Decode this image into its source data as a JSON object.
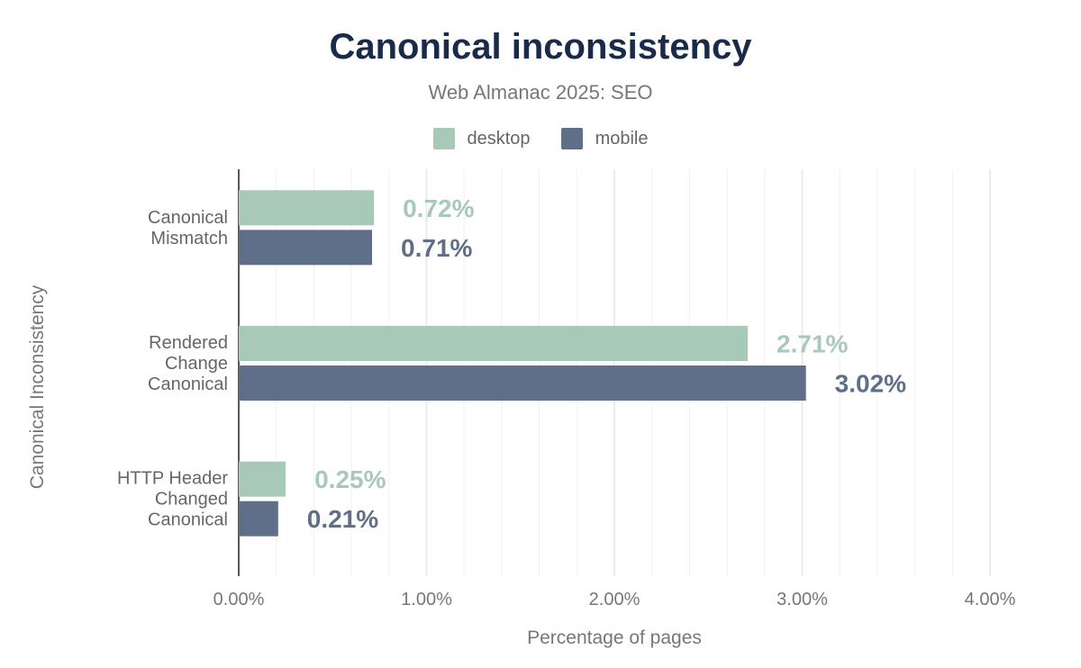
{
  "chart_data": {
    "type": "bar",
    "orientation": "horizontal",
    "title": "Canonical inconsistency",
    "subtitle": "Web Almanac 2025: SEO",
    "xlabel": "Percentage of pages",
    "ylabel": "Canonical Inconsistency",
    "xlim": [
      0,
      4
    ],
    "x_ticks": [
      "0.00%",
      "1.00%",
      "2.00%",
      "3.00%",
      "4.00%"
    ],
    "grid": true,
    "legend_placement": "top",
    "categories": [
      [
        "Canonical",
        "Mismatch"
      ],
      [
        "Rendered",
        "Change",
        "Canonical"
      ],
      [
        "HTTP Header",
        "Changed",
        "Canonical"
      ]
    ],
    "series": [
      {
        "name": "desktop",
        "color": "#a8c8b8",
        "values": [
          0.72,
          2.71,
          0.25
        ],
        "labels": [
          "0.72%",
          "2.71%",
          "0.25%"
        ]
      },
      {
        "name": "mobile",
        "color": "#5f6f8a",
        "values": [
          0.71,
          3.02,
          0.21
        ],
        "labels": [
          "0.71%",
          "3.02%",
          "0.21%"
        ]
      }
    ]
  }
}
